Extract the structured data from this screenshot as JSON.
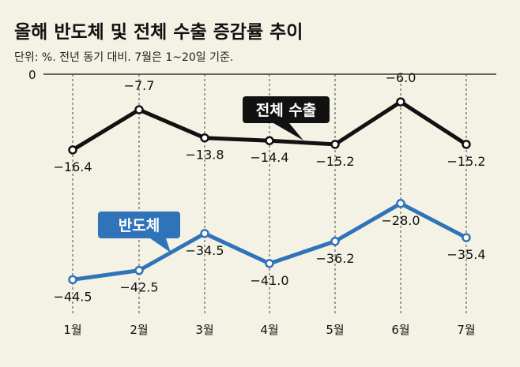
{
  "title": "올해 반도체 및 전체 수출 증감률 추이",
  "subtitle": "단위: %. 전년 동기 대비. 7월은 1~20일 기준.",
  "chart_data": {
    "type": "line",
    "title": "올해 반도체 및 전체 수출 증감률 추이",
    "xlabel": "",
    "ylabel": "%",
    "categories": [
      "1월",
      "2월",
      "3월",
      "4월",
      "5월",
      "6월",
      "7월"
    ],
    "y_reference": "0",
    "ylim": [
      -48,
      0
    ],
    "series": [
      {
        "name": "전체 수출",
        "color": "#111111",
        "values": [
          -16.4,
          -7.7,
          -13.8,
          -14.4,
          -15.2,
          -6.0,
          -15.2
        ],
        "labels": [
          "−16.4",
          "−7.7",
          "−13.8",
          "−14.4",
          "−15.2",
          "−6.0",
          "−15.2"
        ]
      },
      {
        "name": "반도체",
        "color": "#2f73b9",
        "values": [
          -44.5,
          -42.5,
          -34.5,
          -41.0,
          -36.2,
          -28.0,
          -35.4
        ],
        "labels": [
          "−44.5",
          "−42.5",
          "−34.5",
          "−41.0",
          "−36.2",
          "−28.0",
          "−35.4"
        ]
      }
    ]
  }
}
